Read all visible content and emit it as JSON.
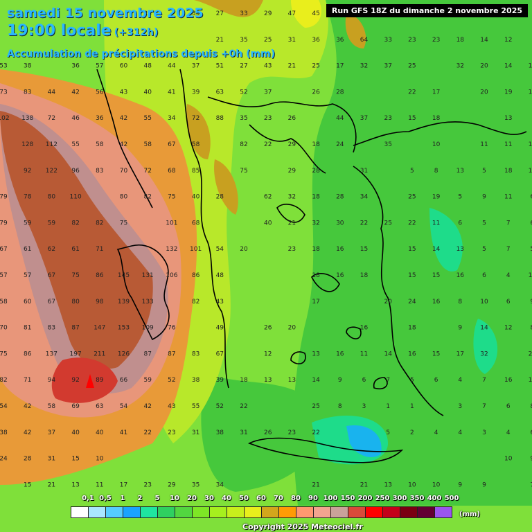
{
  "header": {
    "date": "samedi 15 novembre 2025",
    "time": "19:00 locale",
    "offset": "(+312h)",
    "accumulation": "Accumulation de précipitations depuis +0h (mm)",
    "run": "Run GFS 18Z du dimanche 2 novembre 2025"
  },
  "legend": {
    "unit": "(mm)",
    "labels": [
      "0,1",
      "0,5",
      "1",
      "2",
      "5",
      "10",
      "20",
      "30",
      "40",
      "50",
      "60",
      "70",
      "80",
      "90",
      "100",
      "150",
      "200",
      "250",
      "300",
      "350",
      "400",
      "500"
    ],
    "colors": [
      "#ffffff",
      "#a9e6ff",
      "#55ccff",
      "#1aa3ff",
      "#1fe5a0",
      "#2fd060",
      "#52d640",
      "#7ee626",
      "#a6ef1e",
      "#c8ee1c",
      "#e9ee1c",
      "#d2a61c",
      "#ff9b05",
      "#ff9870",
      "#f2a48f",
      "#c9a29a",
      "#d94a3a",
      "#ff0000",
      "#c4001a",
      "#7a0012",
      "#630033",
      "#9a55ee"
    ]
  },
  "copyright": "Copyright 2025 Meteociel.fr",
  "colors": {
    "green": "#46c83c",
    "lime": "#7fe03a",
    "yellow_green": "#b8e82a",
    "olive": "#c8a020",
    "orange": "#e89a38",
    "salmon": "#e8967a",
    "pink": "#c08f8e",
    "brown": "#b85a35",
    "red": "#d23a2f",
    "teal": "#1edc8a",
    "cyan": "#19b3ee"
  },
  "map_values": [
    [
      "",
      "",
      "",
      "",
      "",
      "",
      "24",
      "",
      "33",
      "27",
      "33",
      "29",
      "47",
      "45",
      "63",
      "",
      "",
      "",
      "",
      "",
      "",
      "",
      ""
    ],
    [
      "",
      "",
      "",
      "",
      "",
      "",
      "",
      "",
      "",
      "21",
      "35",
      "25",
      "31",
      "36",
      "36",
      "64",
      "33",
      "23",
      "23",
      "18",
      "14",
      "12",
      ""
    ],
    [
      "53",
      "38",
      "",
      "36",
      "57",
      "60",
      "48",
      "44",
      "37",
      "51",
      "27",
      "43",
      "21",
      "25",
      "17",
      "32",
      "37",
      "25",
      "",
      "32",
      "20",
      "14",
      "17"
    ],
    [
      "73",
      "83",
      "44",
      "42",
      "56",
      "43",
      "40",
      "41",
      "39",
      "63",
      "52",
      "37",
      "",
      "26",
      "28",
      "",
      "",
      "22",
      "17",
      "",
      "20",
      "19",
      "18"
    ],
    [
      "102",
      "138",
      "72",
      "46",
      "36",
      "42",
      "55",
      "34",
      "72",
      "88",
      "35",
      "23",
      "26",
      "",
      "44",
      "37",
      "23",
      "15",
      "18",
      "",
      "",
      "13",
      ""
    ],
    [
      "",
      "128",
      "112",
      "55",
      "58",
      "42",
      "58",
      "67",
      "58",
      "",
      "82",
      "22",
      "29",
      "18",
      "24",
      "",
      "35",
      "",
      "10",
      "",
      "11",
      "11",
      "11"
    ],
    [
      "",
      "92",
      "122",
      "96",
      "83",
      "70",
      "72",
      "68",
      "85",
      "",
      "75",
      "",
      "29",
      "28",
      "",
      "31",
      "",
      "5",
      "8",
      "13",
      "5",
      "18",
      "11"
    ],
    [
      "79",
      "78",
      "80",
      "110",
      "",
      "80",
      "82",
      "75",
      "40",
      "28",
      "",
      "62",
      "32",
      "18",
      "28",
      "34",
      "",
      "25",
      "19",
      "5",
      "9",
      "11",
      "6"
    ],
    [
      "79",
      "59",
      "59",
      "82",
      "82",
      "75",
      "",
      "101",
      "68",
      "",
      "",
      "40",
      "21",
      "32",
      "30",
      "22",
      "25",
      "22",
      "11",
      "6",
      "5",
      "7",
      "6"
    ],
    [
      "67",
      "61",
      "62",
      "61",
      "71",
      "",
      "",
      "132",
      "101",
      "54",
      "20",
      "",
      "23",
      "18",
      "16",
      "15",
      "",
      "15",
      "14",
      "13",
      "5",
      "7",
      "5"
    ],
    [
      "57",
      "57",
      "67",
      "75",
      "86",
      "145",
      "131",
      "106",
      "86",
      "48",
      "",
      "",
      "",
      "18",
      "16",
      "18",
      "",
      "15",
      "15",
      "16",
      "6",
      "4",
      "15"
    ],
    [
      "58",
      "60",
      "67",
      "80",
      "98",
      "139",
      "133",
      "",
      "82",
      "43",
      "",
      "",
      "",
      "17",
      "",
      "",
      "20",
      "24",
      "16",
      "8",
      "10",
      "6",
      "9"
    ],
    [
      "70",
      "81",
      "83",
      "87",
      "147",
      "153",
      "109",
      "76",
      "",
      "49",
      "",
      "26",
      "20",
      "",
      "",
      "16",
      "",
      "18",
      "",
      "9",
      "14",
      "12",
      "8"
    ],
    [
      "75",
      "86",
      "137",
      "197",
      "211",
      "126",
      "87",
      "87",
      "83",
      "67",
      "",
      "12",
      "",
      "13",
      "16",
      "11",
      "14",
      "16",
      "15",
      "17",
      "32",
      "",
      "20"
    ],
    [
      "82",
      "71",
      "94",
      "92",
      "89",
      "66",
      "59",
      "52",
      "38",
      "39",
      "18",
      "13",
      "13",
      "14",
      "9",
      "6",
      "7",
      "5",
      "6",
      "4",
      "7",
      "16",
      "15"
    ],
    [
      "54",
      "42",
      "58",
      "69",
      "63",
      "54",
      "42",
      "43",
      "55",
      "52",
      "22",
      "",
      "",
      "25",
      "8",
      "3",
      "1",
      "1",
      "",
      "3",
      "7",
      "6",
      "8"
    ],
    [
      "38",
      "42",
      "37",
      "40",
      "40",
      "41",
      "22",
      "23",
      "31",
      "38",
      "31",
      "26",
      "23",
      "22",
      "",
      "",
      "5",
      "2",
      "4",
      "4",
      "3",
      "4",
      "6"
    ],
    [
      "24",
      "28",
      "31",
      "15",
      "10",
      "",
      "",
      "",
      "",
      "",
      "",
      "",
      "",
      "",
      "",
      "",
      "",
      "",
      "",
      "",
      "",
      "10",
      "9"
    ],
    [
      "",
      "15",
      "21",
      "13",
      "11",
      "17",
      "23",
      "29",
      "35",
      "34",
      "",
      "",
      "",
      "21",
      "",
      "21",
      "13",
      "10",
      "10",
      "9",
      "9",
      "",
      "7"
    ]
  ]
}
